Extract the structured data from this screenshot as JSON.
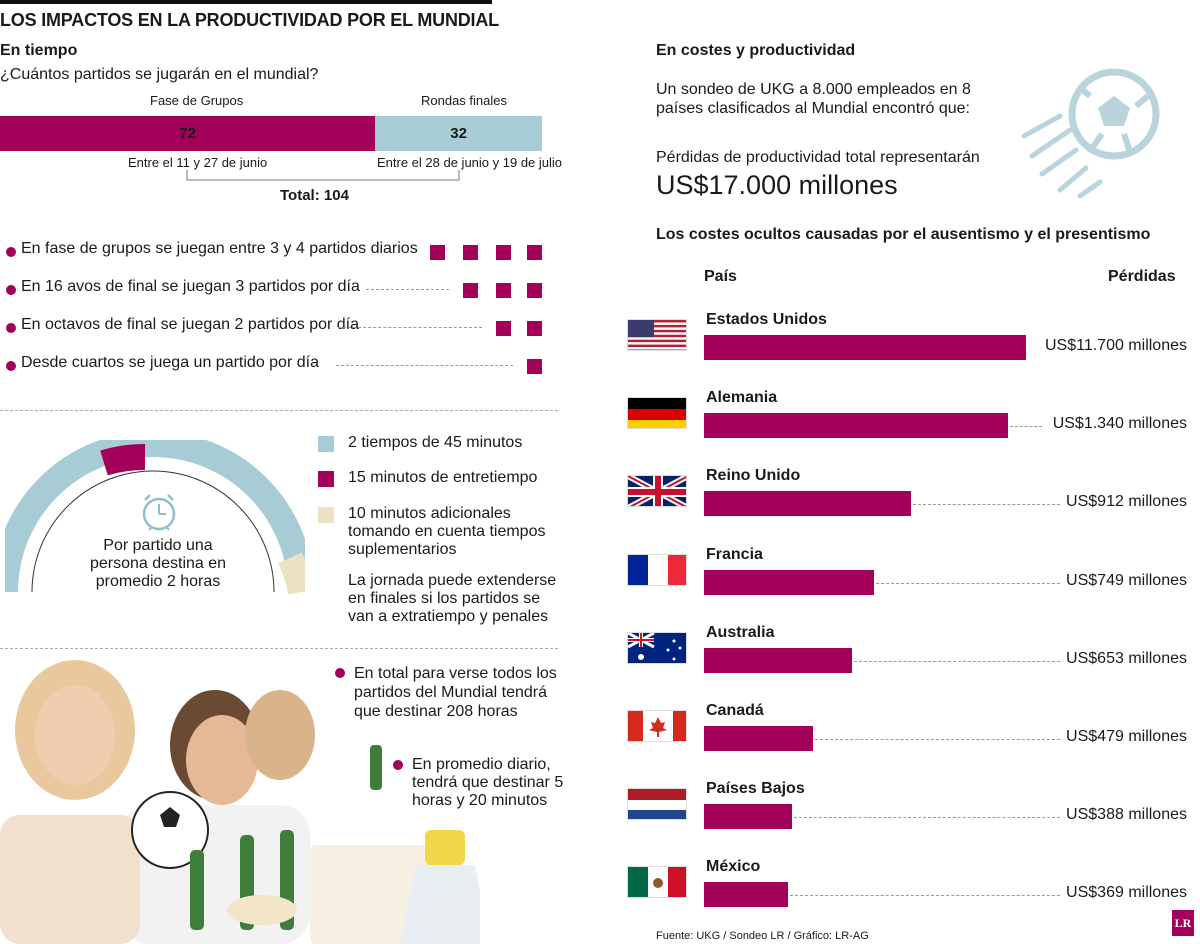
{
  "main_title": "LOS IMPACTOS EN LA PRODUCTIVIDAD POR EL MUNDIAL",
  "left": {
    "section_title": "En tiempo",
    "question": "¿Cuántos partidos se jugarán en el mundial?",
    "groups_label": "Fase de Grupos",
    "finals_label": "Rondas finales",
    "groups_value": "72",
    "finals_value": "32",
    "groups_dates": "Entre el 11 y 27 de junio",
    "finals_dates": "Entre el 28 de junio y 19 de julio",
    "total": "Total: 104",
    "schedule": [
      {
        "text": "En fase de grupos se juegan entre 3 y 4 partidos diarios",
        "squares": 4
      },
      {
        "text": "En 16 avos de final se juegan 3 partidos por día",
        "squares": 3
      },
      {
        "text": "En octavos de final se juegan 2 partidos por día",
        "squares": 2
      },
      {
        "text": "Desde cuartos se juega un partido por día",
        "squares": 1
      }
    ],
    "gauge_text": "Por partido una persona destina en promedio 2 horas",
    "legend": [
      {
        "text": "2 tiempos de 45 minutos",
        "color": "#a8ccd6"
      },
      {
        "text": "15 minutos de entretiempo",
        "color": "#a3005a"
      },
      {
        "text": "10 minutos adicionales tomando en cuenta tiempos suplementarios",
        "color": "#ece2c3"
      }
    ],
    "extend_note": "La jornada puede extenderse en finales si los partidos se van a extratiempo y penales",
    "bullet_total": "En total para verse todos los partidos del Mundial tendrá que destinar 208 horas",
    "bullet_daily": "En promedio diario, tendrá que destinar 5 horas y 20 minutos"
  },
  "right": {
    "section_title": "En costes y productividad",
    "survey": "Un sondeo de UKG a 8.000 empleados en 8 países clasificados al Mundial encontró que:",
    "loss_intro": "Pérdidas de productividad total representarán",
    "loss_total": "US$17.000 millones",
    "chart_title": "Los costes ocultos causadas por el ausentismo y el presentismo",
    "col_country": "País",
    "col_losses": "Pérdidas"
  },
  "chart_data": [
    {
      "type": "bar",
      "categories": [
        "Fase de Grupos",
        "Rondas finales"
      ],
      "values": [
        72,
        32
      ],
      "title": "¿Cuántos partidos se jugarán en el mundial?"
    },
    {
      "type": "bar",
      "title": "Los costes ocultos causadas por el ausentismo y el presentismo",
      "xlabel": "País",
      "ylabel": "Pérdidas",
      "categories": [
        "Estados Unidos",
        "Alemania",
        "Reino Unido",
        "Francia",
        "Australia",
        "Canadá",
        "Países Bajos",
        "México"
      ],
      "values": [
        11700,
        1340,
        912,
        749,
        653,
        479,
        388,
        369
      ],
      "labels": [
        "US$11.700 millones",
        "US$1.340 millones",
        "US$912 millones",
        "US$749 millones",
        "US$653 millones",
        "US$479 millones",
        "US$388 millones",
        "US$369 millones"
      ]
    }
  ],
  "source": "Fuente: UKG / Sondeo LR / Gráfico: LR-AG",
  "logo": "LR"
}
